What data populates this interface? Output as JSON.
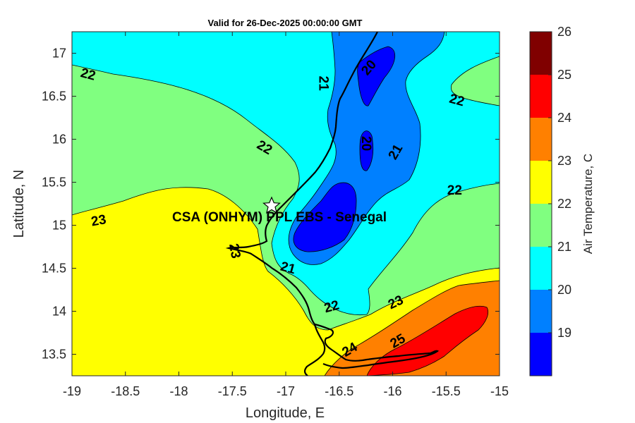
{
  "title": "Valid for 26-Dec-2025 00:00:00 GMT",
  "x_axis": {
    "label": "Longitude, E",
    "ticks": [
      "-19",
      "-18.5",
      "-18",
      "-17.5",
      "-17",
      "-16.5",
      "-16",
      "-15.5",
      "-15"
    ]
  },
  "y_axis": {
    "label": "Latitude, N",
    "ticks": [
      "17",
      "16.5",
      "16",
      "15.5",
      "15",
      "14.5",
      "14",
      "13.5"
    ]
  },
  "colorbar": {
    "label": "Air Temperature, C",
    "ticks": [
      "26",
      "25",
      "24",
      "23",
      "22",
      "21",
      "20",
      "19"
    ],
    "colors": [
      "#800000",
      "#ff0000",
      "#ff8000",
      "#ffff00",
      "#80ff80",
      "#00ffff",
      "#0080ff",
      "#0000ff"
    ]
  },
  "station": {
    "name": "CSA (ONHYM) PPL EBS  - Senegal",
    "lon": -17.12,
    "lat": 15.23
  },
  "contour_labels": [
    {
      "text": "22",
      "lon": -18.85,
      "lat": 16.75
    },
    {
      "text": "21",
      "lon": -16.65,
      "lat": 16.65
    },
    {
      "text": "20",
      "lon": -16.22,
      "lat": 16.83
    },
    {
      "text": "22",
      "lon": -15.4,
      "lat": 16.45
    },
    {
      "text": "22",
      "lon": -17.2,
      "lat": 15.9
    },
    {
      "text": "20",
      "lon": -16.25,
      "lat": 15.95
    },
    {
      "text": "21",
      "lon": -15.97,
      "lat": 15.85
    },
    {
      "text": "22",
      "lon": -15.42,
      "lat": 15.4
    },
    {
      "text": "23",
      "lon": -18.75,
      "lat": 15.05
    },
    {
      "text": "23",
      "lon": -17.48,
      "lat": 14.7
    },
    {
      "text": "21",
      "lon": -16.98,
      "lat": 14.5
    },
    {
      "text": "22",
      "lon": -16.57,
      "lat": 14.05
    },
    {
      "text": "23",
      "lon": -15.97,
      "lat": 14.1
    },
    {
      "text": "24",
      "lon": -16.4,
      "lat": 13.55
    },
    {
      "text": "25",
      "lon": -15.95,
      "lat": 13.65
    }
  ]
}
